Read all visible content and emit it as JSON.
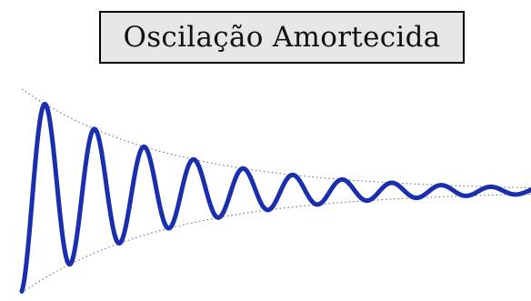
{
  "title": "Oscilação Amortecida",
  "colors": {
    "wave": "#1a2fae",
    "envelope": "#666666",
    "title_box_bg": "#e6e6e6",
    "title_box_border": "#000000"
  },
  "figure": {
    "curve": "damped-oscillation",
    "envelope": "exponential-decay",
    "envelope_style": "dotted"
  }
}
